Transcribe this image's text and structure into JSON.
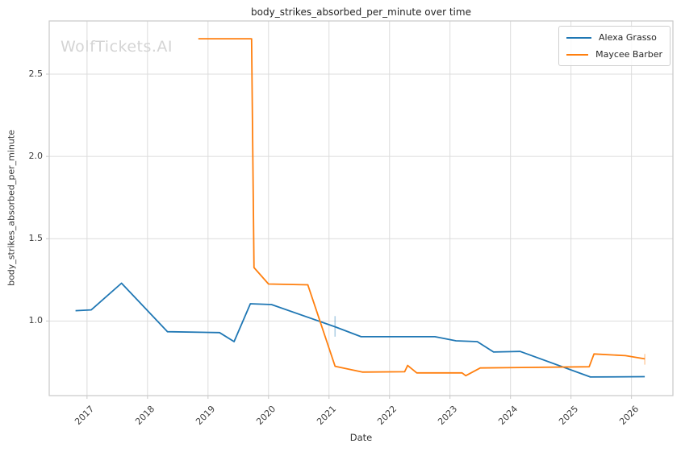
{
  "watermark": "WolfTickets.AI",
  "chart_data": {
    "type": "line",
    "title": "body_strikes_absorbed_per_minute over time",
    "xlabel": "Date",
    "ylabel": "body_strikes_absorbed_per_minute",
    "x_ticks": [
      2017,
      2018,
      2019,
      2020,
      2021,
      2022,
      2023,
      2024,
      2025,
      2026
    ],
    "y_ticks": [
      1.0,
      1.5,
      2.0,
      2.5
    ],
    "xlim": [
      2016.375,
      2026.685
    ],
    "ylim": [
      0.547,
      2.823
    ],
    "grid": true,
    "legend_position": "upper-right",
    "colors": {
      "grid": "#dcdcdc",
      "spine": "#c9c9c9",
      "background": "#ffffff"
    },
    "series": [
      {
        "name": "Alexa Grasso",
        "color": "#1f77b4",
        "points": [
          [
            2016.81,
            1.063
          ],
          [
            2017.07,
            1.068
          ],
          [
            2017.57,
            1.23
          ],
          [
            2018.33,
            0.935
          ],
          [
            2019.19,
            0.93
          ],
          [
            2019.43,
            0.875
          ],
          [
            2019.7,
            1.105
          ],
          [
            2020.05,
            1.1
          ],
          [
            2021.1,
            0.965
          ],
          [
            2021.53,
            0.905
          ],
          [
            2022.75,
            0.905
          ],
          [
            2023.1,
            0.88
          ],
          [
            2023.45,
            0.875
          ],
          [
            2023.72,
            0.812
          ],
          [
            2024.16,
            0.815
          ],
          [
            2025.32,
            0.66
          ],
          [
            2026.22,
            0.662
          ]
        ],
        "error_bars": [
          {
            "x": 2021.1,
            "low": 0.905,
            "high": 1.03
          }
        ]
      },
      {
        "name": "Maycee Barber",
        "color": "#ff7f0e",
        "points": [
          [
            2018.84,
            2.715
          ],
          [
            2019.72,
            2.715
          ],
          [
            2019.76,
            1.325
          ],
          [
            2020.0,
            1.225
          ],
          [
            2020.65,
            1.22
          ],
          [
            2021.1,
            0.725
          ],
          [
            2021.55,
            0.69
          ],
          [
            2022.25,
            0.692
          ],
          [
            2022.3,
            0.73
          ],
          [
            2022.45,
            0.685
          ],
          [
            2023.2,
            0.685
          ],
          [
            2023.26,
            0.668
          ],
          [
            2023.5,
            0.715
          ],
          [
            2025.3,
            0.722
          ],
          [
            2025.38,
            0.8
          ],
          [
            2025.9,
            0.79
          ],
          [
            2026.22,
            0.77
          ]
        ],
        "error_bars": [
          {
            "x": 2026.22,
            "low": 0.735,
            "high": 0.8
          }
        ]
      }
    ]
  }
}
